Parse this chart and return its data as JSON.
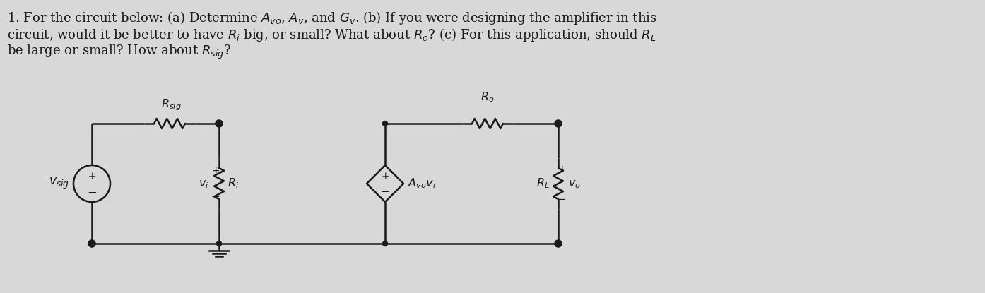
{
  "title_line1": "1. For the circuit below: (a) Determine $A_{vo}$, $A_v$, and $G_v$. (b) If you were designing the amplifier in this",
  "title_line2": "circuit, would it be better to have $R_i$ big, or small? What about $R_o$? (c) For this application, should $R_L$",
  "title_line3": "be large or small? How about $R_{sig}$?",
  "bg_color": "#d8d8d8",
  "line_color": "#1a1a1a",
  "text_color": "#1a1a1a",
  "font_size_text": 13.0,
  "font_size_labels": 11.5
}
